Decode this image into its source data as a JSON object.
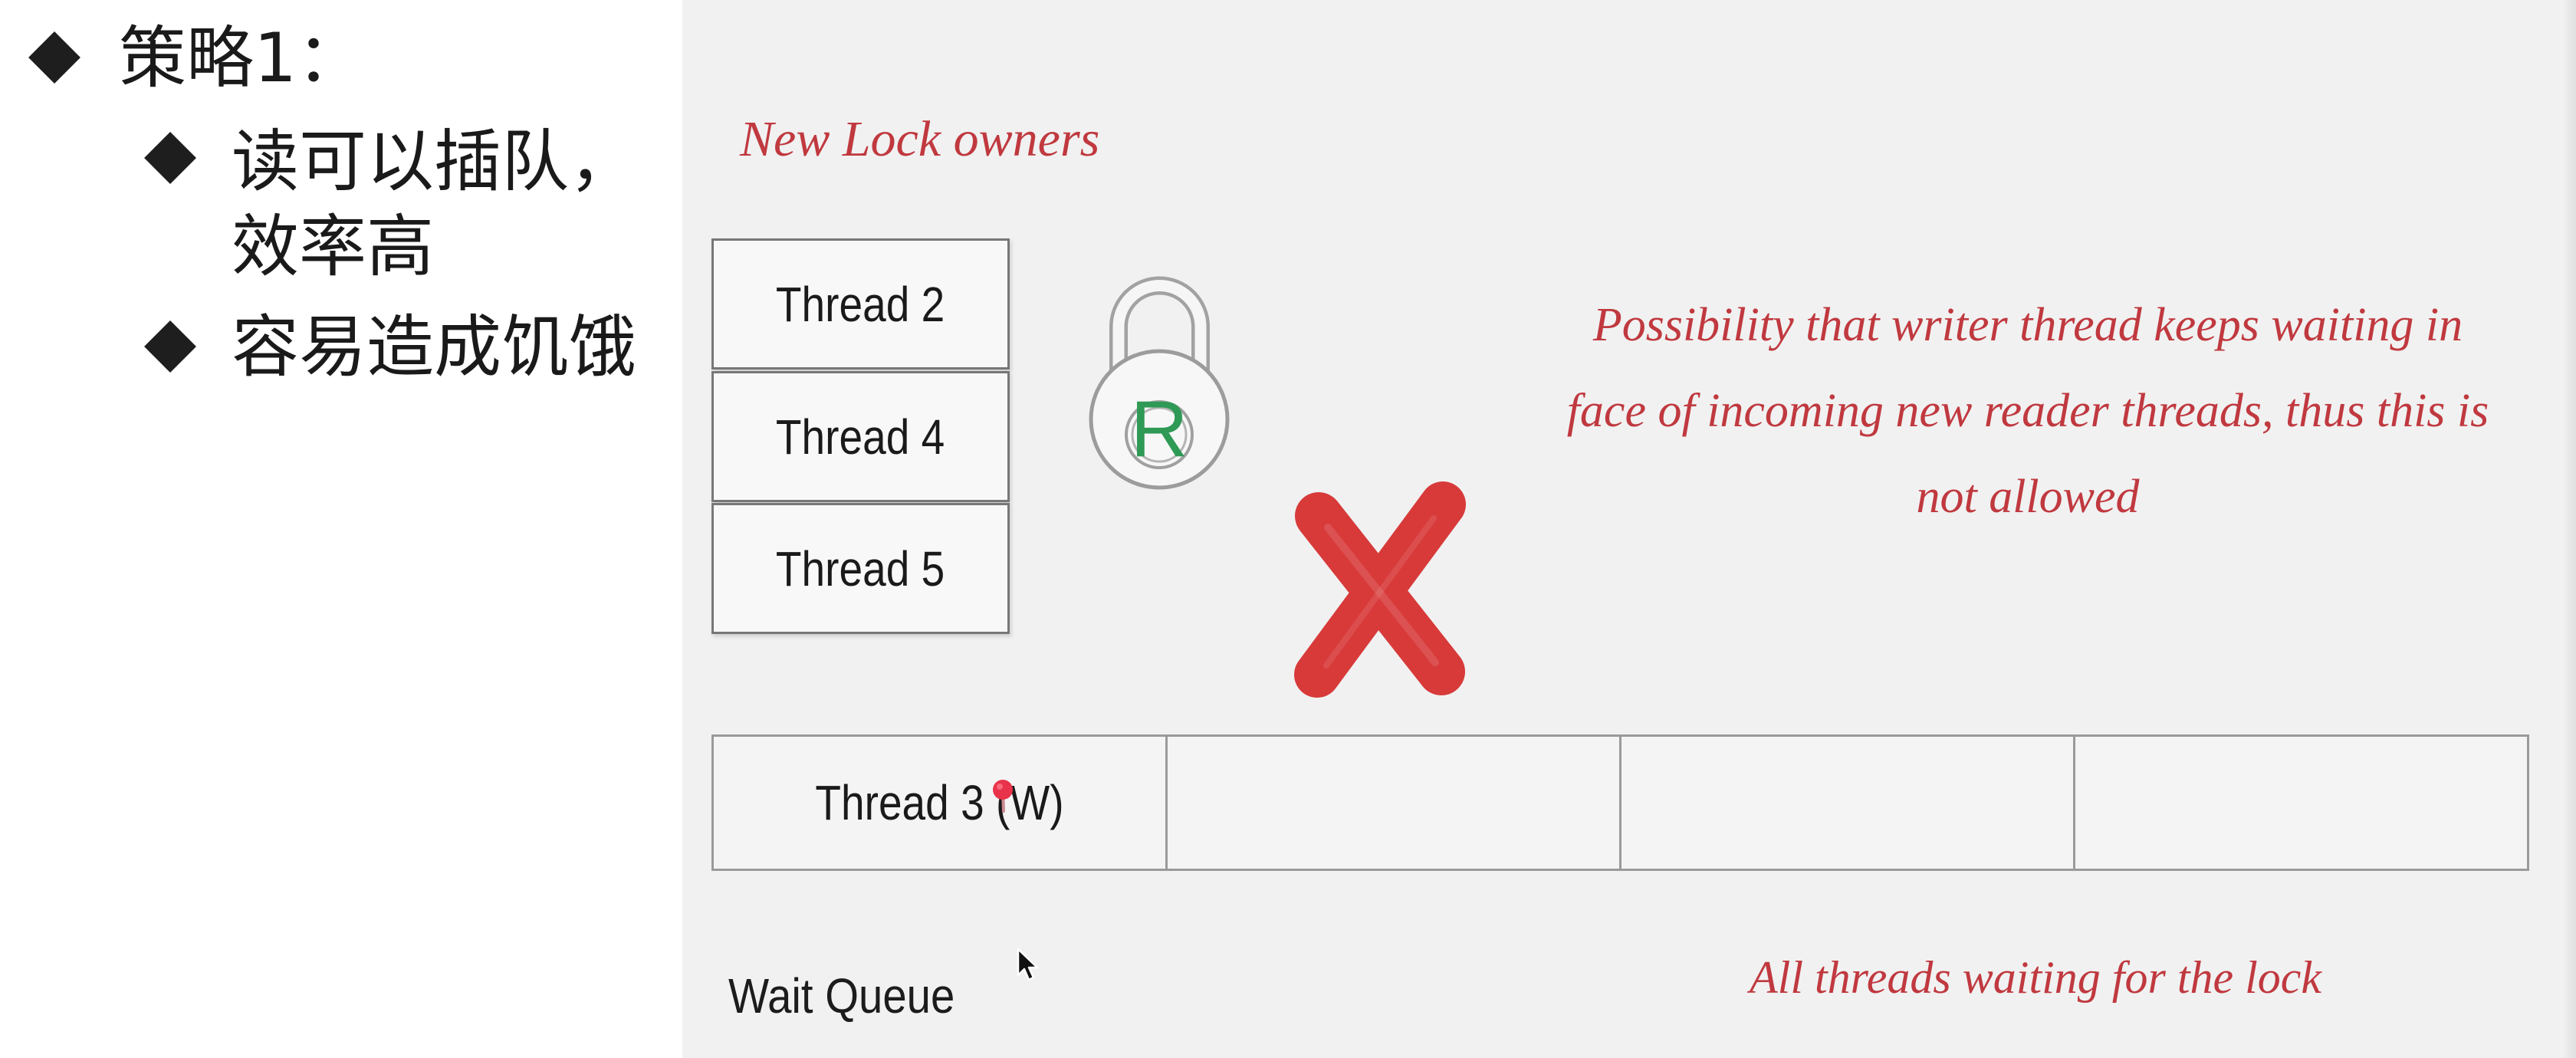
{
  "slide": {
    "heading": "策略1：",
    "bullets": [
      {
        "lines": [
          "读可以插队，",
          "效率高"
        ]
      },
      {
        "lines": [
          "容易造成饥饿"
        ]
      }
    ]
  },
  "diagram": {
    "owners_label": "New Lock owners",
    "owners": [
      "Thread 2",
      "Thread 4",
      "Thread 5"
    ],
    "lock_letter": "R",
    "note_lines": [
      "Possibility that writer thread keeps waiting in",
      "face of incoming new reader threads, thus this is",
      "not allowed"
    ],
    "queue_label": "Wait Queue",
    "queue_slots": [
      "Thread 3 (W)",
      "",
      "",
      ""
    ],
    "queue_note": "All threads waiting for the lock"
  },
  "icons": {
    "bullet": "diamond-bullet-icon",
    "lock": "padlock-icon",
    "cross": "red-cross-icon",
    "pointer": "laser-pointer-dot-icon",
    "cursor": "mouse-cursor-icon"
  },
  "colors": {
    "annotation": "#c0393f",
    "cross": "#d83a3a",
    "lock_letter": "#2e9a55",
    "panel": "#f1f1f1",
    "text": "#1c1c1c"
  }
}
